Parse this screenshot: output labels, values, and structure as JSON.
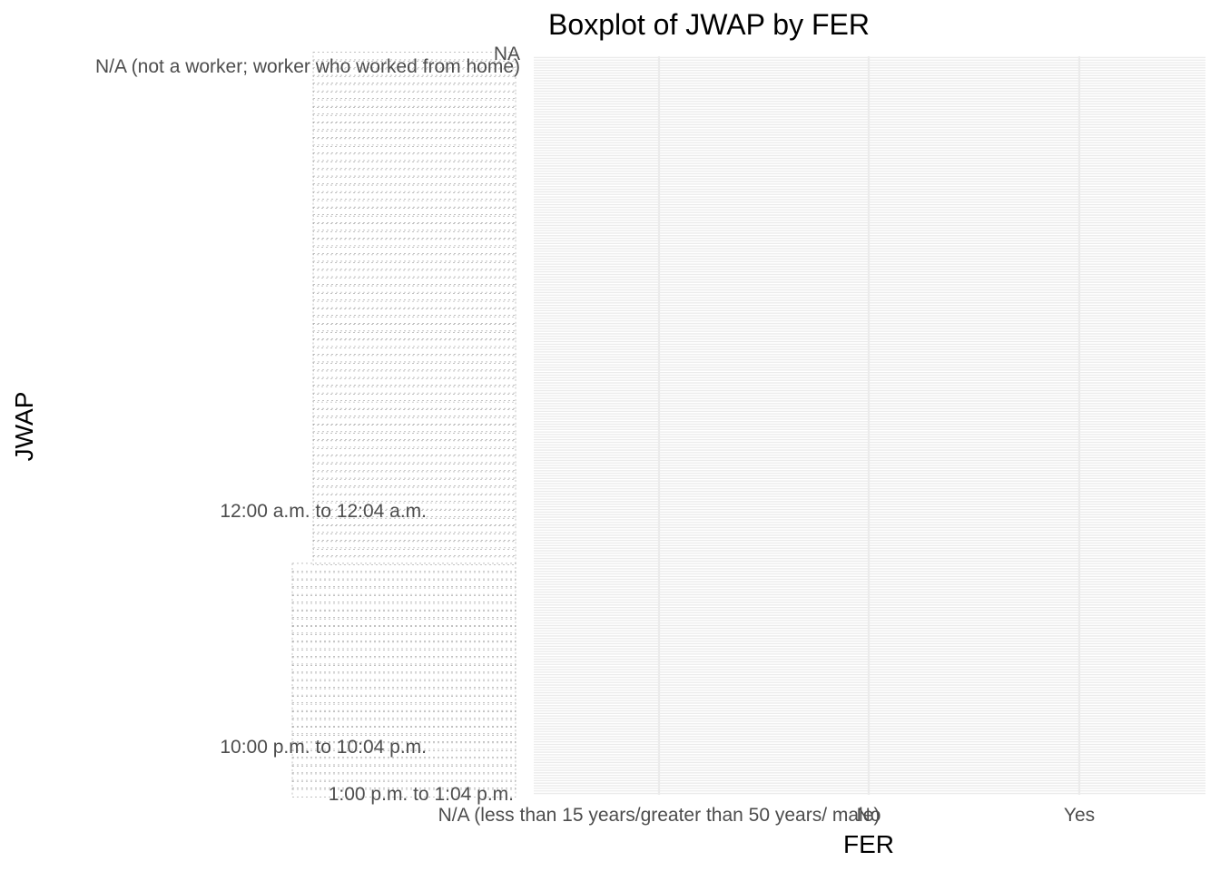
{
  "chart_data": {
    "type": "boxplot",
    "title": "Boxplot of JWAP by FER",
    "xlabel": "FER",
    "ylabel": "JWAP",
    "x_categories": [
      "N/A (less than 15 years/greater than 50 years/ male)",
      "No",
      "Yes"
    ],
    "y_categories_visible": [
      "NA",
      "N/A (not a worker; worker who worked from home)",
      "12:00 a.m. to 12:04 a.m.",
      "10:00 p.m. to 10:04 p.m.",
      "1:00 p.m. to 1:04 p.m."
    ],
    "y_category_count": 286,
    "grid": true,
    "legend": "none",
    "series": []
  },
  "colors": {
    "grid_major": "#ebebeb",
    "tick_text": "#4d4d4d",
    "title_text": "#000000",
    "background": "#ffffff"
  }
}
